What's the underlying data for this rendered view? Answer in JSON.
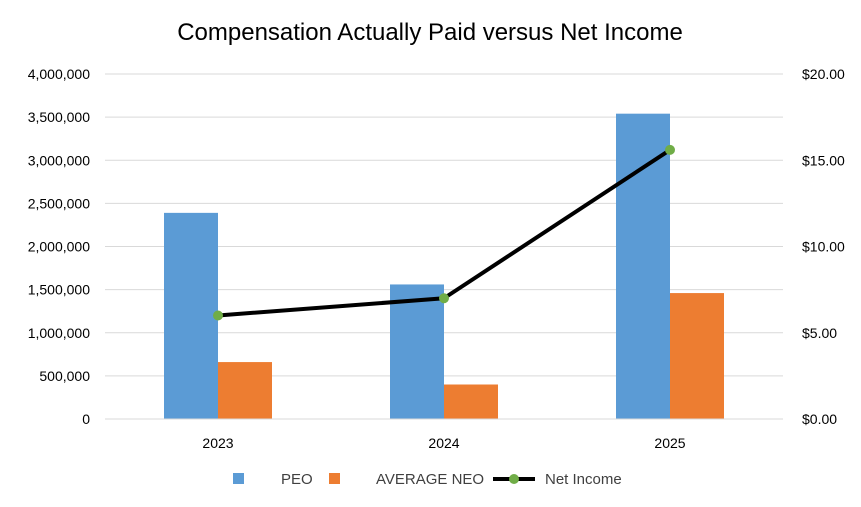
{
  "chart_data": {
    "type": "bar",
    "title": "Compensation Actually Paid versus Net Income",
    "categories": [
      "2023",
      "2024",
      "2025"
    ],
    "series": [
      {
        "name": "PEO",
        "kind": "bar",
        "axis": "left",
        "color": "#5b9bd5",
        "values": [
          2390000,
          1560000,
          3540000
        ]
      },
      {
        "name": "AVERAGE NEO",
        "kind": "bar",
        "axis": "left",
        "color": "#ed7d31",
        "values": [
          660000,
          400000,
          1460000
        ]
      },
      {
        "name": "Net Income",
        "kind": "line",
        "axis": "right",
        "color": "#000000",
        "marker_color": "#70ad47",
        "values": [
          6.0,
          7.0,
          15.6
        ]
      }
    ],
    "y_left": {
      "ylim": [
        0,
        4000000
      ],
      "ticks": [
        0,
        500000,
        1000000,
        1500000,
        2000000,
        2500000,
        3000000,
        3500000,
        4000000
      ],
      "tick_labels": [
        "0",
        "500,000",
        "1,000,000",
        "1,500,000",
        "2,000,000",
        "2,500,000",
        "3,000,000",
        "3,500,000",
        "4,000,000"
      ]
    },
    "y_right": {
      "ylim": [
        0,
        20
      ],
      "ticks": [
        0,
        5,
        10,
        15,
        20
      ],
      "tick_labels": [
        "$0.00",
        "$5.00",
        "$10.00",
        "$15.00",
        "$20.00"
      ]
    },
    "grid": true,
    "legend": "bottom",
    "colors": {
      "gridline": "#d9d9d9",
      "axis": "#d9d9d9"
    }
  }
}
